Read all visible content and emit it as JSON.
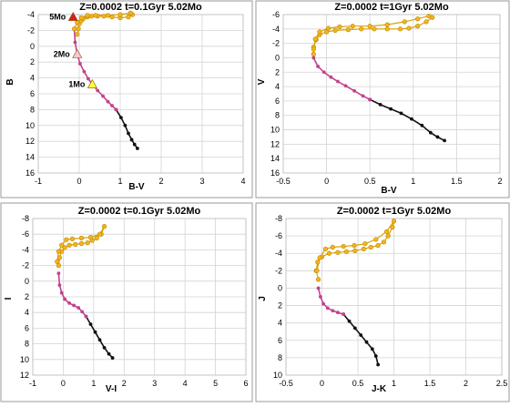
{
  "chart_data": [
    {
      "type": "scatter",
      "title": "Z=0.0002  t=0.1Gyr  5.02Mo",
      "xlabel": "B-V",
      "ylabel": "B",
      "xlim": [
        -1,
        4
      ],
      "ylim": [
        16,
        -4
      ],
      "y_inverted": true,
      "xticks": [
        -1,
        0,
        1,
        2,
        3,
        4
      ],
      "yticks": [
        -4,
        -2,
        0,
        2,
        4,
        6,
        8,
        10,
        12,
        14,
        16
      ],
      "grid": true,
      "colors": {
        "main_sequence_low": "#111111",
        "main_sequence_mid": "#c2428f",
        "giant_branch": "#f4b41a",
        "giant_outline": "#b8860b",
        "marker_5Mo": "#e31a1c",
        "marker_2Mo": "#f7c6d9",
        "marker_1Mo": "#ffff33"
      },
      "series": [
        {
          "segment": "lower-main-sequence",
          "color": "#111111",
          "x": [
            0.9,
            1.02,
            1.12,
            1.2,
            1.28,
            1.35,
            1.42
          ],
          "y": [
            8.0,
            9.0,
            10.0,
            11.0,
            11.8,
            12.4,
            12.9
          ]
        },
        {
          "segment": "upper-main-sequence",
          "color": "#c2428f",
          "x": [
            -0.12,
            -0.1,
            -0.05,
            0.02,
            0.12,
            0.22,
            0.32,
            0.45,
            0.58,
            0.7,
            0.8,
            0.9
          ],
          "y": [
            -2.2,
            -0.5,
            1.0,
            2.2,
            3.2,
            4.1,
            4.8,
            5.6,
            6.3,
            7.0,
            7.5,
            8.0
          ]
        },
        {
          "segment": "giant-branch",
          "color": "#f4b41a",
          "x": [
            -0.05,
            -0.02,
            0.0,
            0.05,
            0.1,
            0.2,
            0.3,
            0.45,
            0.6,
            0.8,
            1.0,
            1.2,
            1.3,
            1.25,
            1.0,
            0.7,
            0.4,
            0.2,
            0.05,
            -0.05,
            -0.12
          ],
          "y": [
            -1.5,
            -2.2,
            -2.8,
            -3.2,
            -3.5,
            -3.7,
            -3.8,
            -3.8,
            -3.8,
            -3.7,
            -3.6,
            -3.7,
            -4.0,
            -4.2,
            -4.0,
            -3.9,
            -3.9,
            -3.9,
            -3.6,
            -3.0,
            -2.2
          ]
        }
      ],
      "annotations": [
        {
          "text": "5Mo",
          "x": -0.15,
          "y": -3.7,
          "marker": "triangle",
          "color": "#e31a1c"
        },
        {
          "text": "2Mo",
          "x": -0.05,
          "y": 1.0,
          "marker": "triangle",
          "color": "#f7c6d9"
        },
        {
          "text": "1Mo",
          "x": 0.32,
          "y": 4.8,
          "marker": "triangle",
          "color": "#ffff33"
        }
      ]
    },
    {
      "type": "scatter",
      "title": "Z=0.0002  t=1Gyr  5.02Mo",
      "xlabel": "B-V",
      "ylabel": "V",
      "xlim": [
        -0.5,
        2
      ],
      "ylim": [
        16,
        -6
      ],
      "y_inverted": true,
      "xticks": [
        -0.5,
        0,
        0.5,
        1,
        1.5,
        2
      ],
      "xtick_labels": [
        "-0.5",
        "0",
        "0.5",
        "1",
        "1.5",
        "2"
      ],
      "yticks": [
        -6,
        -4,
        -2,
        0,
        2,
        4,
        6,
        8,
        10,
        12,
        14,
        16
      ],
      "grid": true,
      "series": [
        {
          "segment": "lower-main-sequence",
          "color": "#111111",
          "x": [
            0.5,
            0.62,
            0.74,
            0.86,
            0.98,
            1.1,
            1.2,
            1.28,
            1.36
          ],
          "y": [
            5.8,
            6.5,
            7.1,
            7.7,
            8.5,
            9.4,
            10.4,
            11.0,
            11.5
          ]
        },
        {
          "segment": "upper-main-sequence",
          "color": "#c2428f",
          "x": [
            -0.15,
            -0.1,
            -0.03,
            0.05,
            0.13,
            0.22,
            0.32,
            0.42,
            0.5
          ],
          "y": [
            0.0,
            1.2,
            2.0,
            2.7,
            3.3,
            3.9,
            4.6,
            5.3,
            5.8
          ]
        },
        {
          "segment": "giant-branch",
          "color": "#f4b41a",
          "x": [
            -0.15,
            -0.15,
            -0.12,
            -0.08,
            0.0,
            0.1,
            0.25,
            0.4,
            0.55,
            0.7,
            0.85,
            0.95,
            1.05,
            1.15,
            1.22,
            1.18,
            1.05,
            0.9,
            0.7,
            0.5,
            0.3,
            0.15,
            0.02,
            -0.08,
            -0.13,
            -0.15
          ],
          "y": [
            -0.5,
            -1.5,
            -2.5,
            -3.2,
            -3.6,
            -3.8,
            -3.9,
            -4.0,
            -4.0,
            -4.0,
            -4.0,
            -4.1,
            -4.4,
            -5.0,
            -5.6,
            -5.8,
            -5.4,
            -5.0,
            -4.6,
            -4.4,
            -4.4,
            -4.3,
            -4.1,
            -3.6,
            -2.6,
            -1.2
          ]
        }
      ]
    },
    {
      "type": "scatter",
      "title": "Z=0.0002  t=0.1Gyr  5.02Mo",
      "xlabel": "V-I",
      "ylabel": "I",
      "xlim": [
        -1,
        6
      ],
      "ylim": [
        12,
        -8
      ],
      "y_inverted": true,
      "xticks": [
        -1,
        0,
        1,
        2,
        3,
        4,
        5,
        6
      ],
      "yticks": [
        -8,
        -6,
        -4,
        -2,
        0,
        2,
        4,
        6,
        8,
        10,
        12
      ],
      "grid": true,
      "series": [
        {
          "segment": "lower-main-sequence",
          "color": "#111111",
          "x": [
            0.75,
            0.9,
            1.05,
            1.2,
            1.35,
            1.5,
            1.62
          ],
          "y": [
            4.5,
            5.5,
            6.5,
            7.5,
            8.5,
            9.3,
            9.8
          ]
        },
        {
          "segment": "upper-main-sequence",
          "color": "#c2428f",
          "x": [
            -0.15,
            -0.12,
            -0.05,
            0.05,
            0.2,
            0.35,
            0.5,
            0.62,
            0.75
          ],
          "y": [
            -1.0,
            0.5,
            1.5,
            2.3,
            2.8,
            3.1,
            3.4,
            3.9,
            4.5
          ]
        },
        {
          "segment": "giant-branch",
          "color": "#f4b41a",
          "x": [
            -0.15,
            -0.12,
            -0.05,
            0.05,
            0.2,
            0.4,
            0.6,
            0.8,
            0.95,
            1.1,
            1.25,
            1.35,
            1.2,
            0.9,
            0.6,
            0.3,
            0.1,
            -0.05,
            -0.15,
            -0.2
          ],
          "y": [
            -2.0,
            -3.0,
            -3.8,
            -4.3,
            -4.6,
            -4.7,
            -4.8,
            -4.9,
            -5.2,
            -5.5,
            -6.0,
            -7.0,
            -6.0,
            -5.6,
            -5.5,
            -5.4,
            -5.3,
            -4.6,
            -3.8,
            -2.5
          ]
        }
      ]
    },
    {
      "type": "scatter",
      "title": "Z=0.0002  t=1Gyr  5.02Mo",
      "xlabel": "J-K",
      "ylabel": "J",
      "xlim": [
        -0.5,
        2.5
      ],
      "ylim": [
        10,
        -8
      ],
      "y_inverted": true,
      "xticks": [
        -0.5,
        0,
        0.5,
        1,
        1.5,
        2,
        2.5
      ],
      "xtick_labels": [
        "-0.5",
        "0",
        "0.5",
        "1",
        "1.5",
        "2",
        "2.5"
      ],
      "yticks": [
        -8,
        -6,
        -4,
        -2,
        0,
        2,
        4,
        6,
        8,
        10
      ],
      "grid": true,
      "series": [
        {
          "segment": "lower-main-sequence",
          "color": "#111111",
          "x": [
            0.3,
            0.38,
            0.46,
            0.54,
            0.62,
            0.7,
            0.75,
            0.78
          ],
          "y": [
            3.0,
            3.8,
            4.6,
            5.4,
            6.2,
            7.0,
            7.8,
            8.8
          ]
        },
        {
          "segment": "upper-main-sequence",
          "color": "#c2428f",
          "x": [
            -0.05,
            -0.02,
            0.02,
            0.08,
            0.15,
            0.22,
            0.3
          ],
          "y": [
            0.0,
            1.0,
            1.8,
            2.3,
            2.6,
            2.8,
            3.0
          ]
        },
        {
          "segment": "giant-branch",
          "color": "#f4b41a",
          "x": [
            -0.05,
            -0.08,
            -0.06,
            0.0,
            0.1,
            0.22,
            0.34,
            0.46,
            0.58,
            0.68,
            0.78,
            0.86,
            0.92,
            0.98,
            1.0,
            0.9,
            0.75,
            0.6,
            0.45,
            0.3,
            0.15,
            0.05,
            -0.03,
            -0.07
          ],
          "y": [
            -1.0,
            -2.0,
            -3.0,
            -3.6,
            -4.0,
            -4.1,
            -4.2,
            -4.3,
            -4.5,
            -4.7,
            -4.9,
            -5.3,
            -6.0,
            -7.0,
            -7.7,
            -6.5,
            -5.6,
            -5.1,
            -4.9,
            -4.8,
            -4.7,
            -4.5,
            -3.5,
            -2.0
          ]
        }
      ]
    }
  ]
}
